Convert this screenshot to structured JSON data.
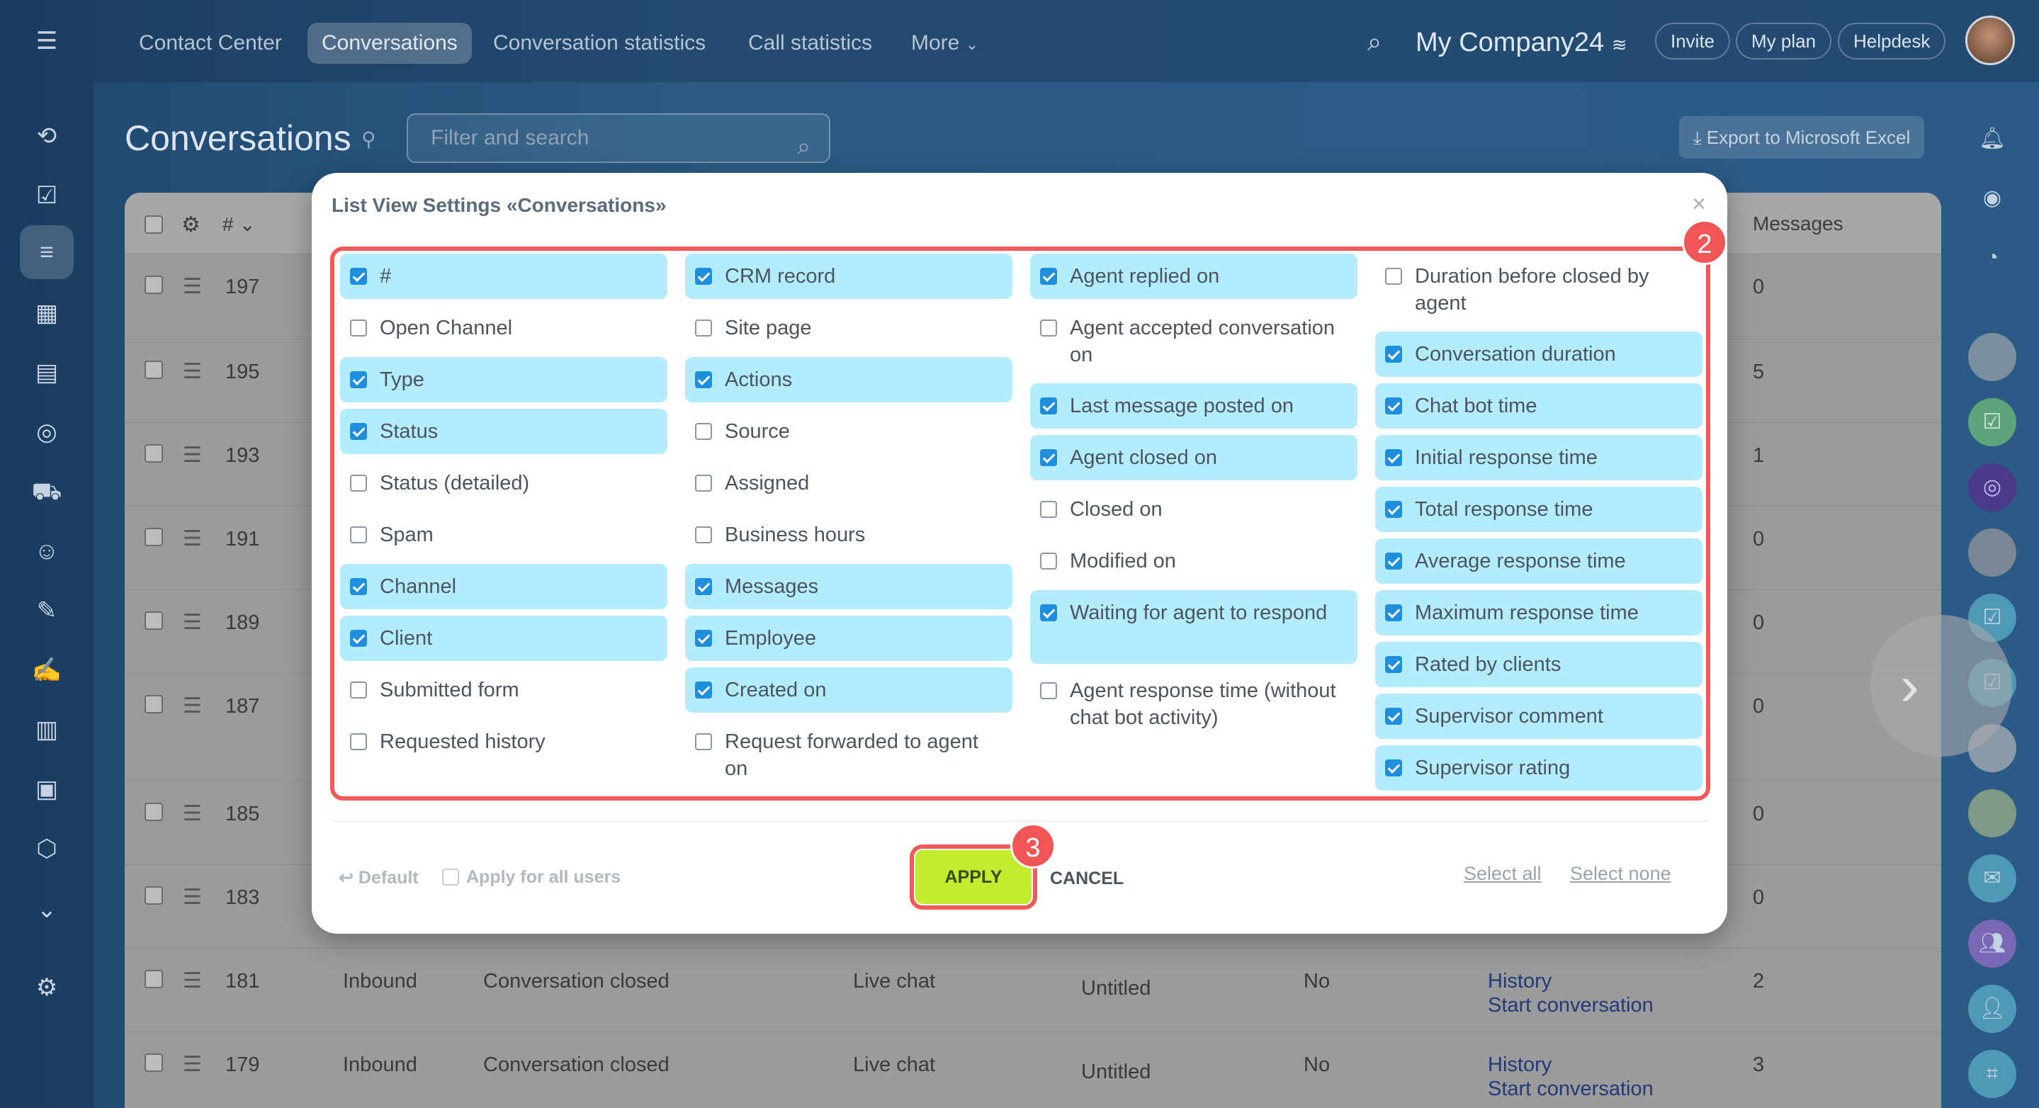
{
  "topnav": {
    "items": [
      "Contact Center",
      "Conversations",
      "Conversation statistics",
      "Call statistics",
      "More"
    ],
    "active": 1,
    "company": "My Company24",
    "buttons": [
      "Invite",
      "My plan",
      "Helpdesk"
    ]
  },
  "page": {
    "title": "Conversations",
    "search_placeholder": "Filter and search",
    "export_label": "Export to Microsoft Excel"
  },
  "table": {
    "header_number": "#",
    "header_messages": "Messages",
    "rows": [
      {
        "id": "197",
        "messages": "0"
      },
      {
        "id": "195",
        "messages": "5"
      },
      {
        "id": "193",
        "messages": "1"
      },
      {
        "id": "191",
        "messages": "0"
      },
      {
        "id": "189",
        "messages": "0"
      },
      {
        "id": "187",
        "messages": "0"
      },
      {
        "id": "185",
        "messages": "0"
      },
      {
        "id": "183",
        "messages": "0"
      },
      {
        "id": "181",
        "type": "Inbound",
        "status": "Conversation closed",
        "channel": "Live chat",
        "client": "Untitled",
        "spam": "No",
        "action1": "History",
        "action2": "Start conversation",
        "messages": "2"
      },
      {
        "id": "179",
        "type": "Inbound",
        "status": "Conversation closed",
        "channel": "Live chat",
        "client": "Untitled",
        "spam": "No",
        "action1": "History",
        "action2": "Start conversation",
        "messages": "3"
      }
    ]
  },
  "modal": {
    "title": "List View Settings «Conversations»",
    "columns": [
      [
        {
          "label": "#",
          "checked": true
        },
        {
          "label": "Open Channel",
          "checked": false
        },
        {
          "label": "Type",
          "checked": true
        },
        {
          "label": "Status",
          "checked": true
        },
        {
          "label": "Status (detailed)",
          "checked": false
        },
        {
          "label": "Spam",
          "checked": false
        },
        {
          "label": "Channel",
          "checked": true
        },
        {
          "label": "Client",
          "checked": true
        },
        {
          "label": "Submitted form",
          "checked": false
        },
        {
          "label": "Requested history",
          "checked": false
        }
      ],
      [
        {
          "label": "CRM record",
          "checked": true
        },
        {
          "label": "Site page",
          "checked": false
        },
        {
          "label": "Actions",
          "checked": true
        },
        {
          "label": "Source",
          "checked": false
        },
        {
          "label": "Assigned",
          "checked": false
        },
        {
          "label": "Business hours",
          "checked": false
        },
        {
          "label": "Messages",
          "checked": true
        },
        {
          "label": "Employee",
          "checked": true
        },
        {
          "label": "Created on",
          "checked": true
        },
        {
          "label": "Request forwarded to agent on",
          "checked": false
        }
      ],
      [
        {
          "label": "Agent replied on",
          "checked": true
        },
        {
          "label": "Agent accepted conversation on",
          "checked": false
        },
        {
          "label": "Last message posted on",
          "checked": true
        },
        {
          "label": "Agent closed on",
          "checked": true
        },
        {
          "label": "Closed on",
          "checked": false
        },
        {
          "label": "Modified on",
          "checked": false
        },
        {
          "label": "Waiting for agent to respond",
          "checked": true
        },
        {
          "label": "Agent response time (without chat bot activity)",
          "checked": false
        }
      ],
      [
        {
          "label": "Duration before closed by agent",
          "checked": false
        },
        {
          "label": "Conversation duration",
          "checked": true
        },
        {
          "label": "Chat bot time",
          "checked": true
        },
        {
          "label": "Initial response time",
          "checked": true
        },
        {
          "label": "Total response time",
          "checked": true
        },
        {
          "label": "Average response time",
          "checked": true
        },
        {
          "label": "Maximum response time",
          "checked": true
        },
        {
          "label": "Rated by clients",
          "checked": true
        },
        {
          "label": "Supervisor comment",
          "checked": true
        },
        {
          "label": "Supervisor rating",
          "checked": true
        }
      ]
    ],
    "footer": {
      "default_label": "Default",
      "apply_all_label": "Apply for all users",
      "apply_label": "APPLY",
      "cancel_label": "CANCEL",
      "select_all": "Select all",
      "select_none": "Select none"
    },
    "badges": [
      "2",
      "3"
    ]
  },
  "colors": {
    "accent_checkbox": "#1f8edc",
    "highlight": "#b3ecfd",
    "apply_button": "#c3ec2f",
    "annotation_red": "#f05a5a"
  }
}
